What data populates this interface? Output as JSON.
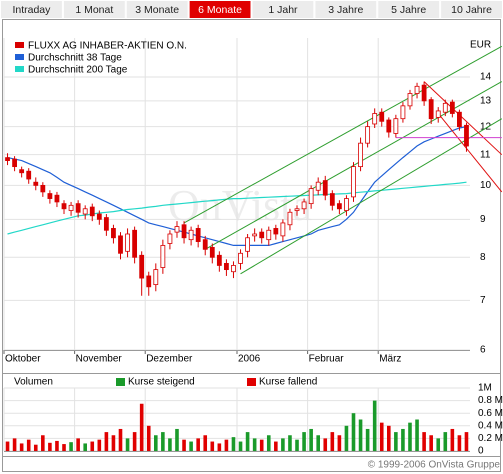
{
  "tabs": [
    "Intraday",
    "1 Monat",
    "3 Monate",
    "6 Monate",
    "1 Jahr",
    "3 Jahre",
    "5 Jahre",
    "10 Jahre"
  ],
  "active_tab": 3,
  "footer": "© 1999-2006 OnVista Gruppe",
  "chart_data": {
    "type": "candlestick",
    "unit": "EUR",
    "watermark": "OnVista",
    "log": true,
    "grid": true,
    "ohlc": {
      "name": "FLUXX AG INHABER-AKTIEN O.N.",
      "color": "#d80000",
      "open": [
        10.9,
        10.85,
        10.5,
        10.45,
        10.1,
        10.0,
        9.75,
        9.7,
        9.45,
        9.25,
        9.45,
        9.15,
        9.35,
        9.15,
        9.05,
        8.75,
        8.55,
        8.15,
        8.7,
        8.05,
        7.55,
        7.35,
        7.75,
        8.35,
        8.65,
        8.85,
        8.45,
        8.75,
        8.45,
        8.25,
        8.05,
        7.85,
        7.65,
        7.85,
        8.15,
        8.55,
        8.65,
        8.45,
        8.75,
        8.55,
        8.85,
        9.25,
        9.3,
        9.45,
        9.85,
        10.15,
        9.75,
        9.45,
        9.25,
        9.65,
        10.6,
        11.4,
        12.1,
        12.55,
        12.25,
        11.75,
        12.3,
        12.8,
        13.3,
        13.65,
        13.05,
        12.35,
        12.55,
        12.95,
        12.55,
        12.05
      ],
      "high": [
        11.05,
        10.95,
        10.6,
        10.55,
        10.25,
        10.1,
        9.85,
        9.8,
        9.55,
        9.5,
        9.55,
        9.4,
        9.45,
        9.25,
        9.15,
        8.85,
        8.65,
        8.75,
        8.8,
        8.15,
        7.65,
        7.85,
        8.45,
        8.7,
        8.95,
        8.95,
        8.8,
        8.85,
        8.55,
        8.35,
        8.15,
        7.95,
        7.9,
        8.2,
        8.6,
        8.75,
        8.75,
        8.8,
        8.85,
        9.0,
        9.3,
        9.4,
        9.6,
        10.0,
        10.25,
        10.3,
        9.85,
        9.55,
        9.7,
        10.75,
        11.6,
        12.2,
        12.7,
        12.7,
        12.35,
        12.45,
        12.95,
        13.45,
        13.75,
        13.8,
        13.15,
        12.75,
        13.05,
        13.05,
        12.65,
        12.15
      ],
      "low": [
        10.65,
        10.45,
        10.25,
        10.05,
        9.85,
        9.65,
        9.45,
        9.35,
        9.15,
        9.1,
        9.05,
        9.0,
        8.95,
        8.85,
        8.55,
        8.35,
        7.95,
        8.0,
        7.85,
        7.1,
        7.1,
        7.2,
        7.6,
        8.2,
        8.5,
        8.35,
        8.3,
        8.25,
        8.05,
        7.85,
        7.65,
        7.55,
        7.5,
        7.7,
        8.0,
        8.4,
        8.35,
        8.3,
        8.45,
        8.4,
        8.7,
        9.1,
        9.15,
        9.3,
        9.7,
        9.55,
        9.25,
        9.15,
        9.1,
        9.5,
        10.45,
        11.25,
        11.95,
        12.0,
        11.6,
        11.6,
        12.15,
        12.65,
        13.1,
        12.8,
        12.1,
        12.15,
        12.4,
        12.35,
        11.85,
        11.1
      ],
      "close": [
        10.8,
        10.6,
        10.4,
        10.2,
        10.0,
        9.8,
        9.6,
        9.5,
        9.3,
        9.4,
        9.2,
        9.3,
        9.1,
        9.0,
        8.7,
        8.5,
        8.1,
        8.6,
        8.0,
        7.5,
        7.3,
        7.7,
        8.3,
        8.6,
        8.8,
        8.5,
        8.7,
        8.4,
        8.2,
        8.0,
        7.8,
        7.7,
        7.8,
        8.1,
        8.5,
        8.6,
        8.5,
        8.7,
        8.6,
        8.9,
        9.2,
        9.3,
        9.5,
        9.9,
        10.1,
        9.7,
        9.4,
        9.3,
        9.6,
        10.6,
        11.4,
        12.0,
        12.5,
        12.2,
        11.8,
        12.3,
        12.8,
        13.3,
        13.6,
        13.0,
        12.3,
        12.6,
        12.9,
        12.5,
        12.0,
        11.3
      ]
    },
    "series": [
      {
        "name": "Durchschnitt 38 Tage",
        "color": "#1f5fd6",
        "values": [
          10.9,
          10.85,
          10.8,
          10.7,
          10.6,
          10.5,
          10.4,
          10.25,
          10.1,
          10.0,
          9.9,
          9.8,
          9.7,
          9.6,
          9.5,
          9.4,
          9.3,
          9.2,
          9.1,
          9.0,
          8.9,
          8.85,
          8.8,
          8.75,
          8.7,
          8.65,
          8.6,
          8.55,
          8.5,
          8.45,
          8.4,
          8.35,
          8.3,
          8.3,
          8.3,
          8.3,
          8.3,
          8.3,
          8.35,
          8.4,
          8.45,
          8.5,
          8.55,
          8.6,
          8.7,
          8.75,
          8.8,
          8.85,
          9.0,
          9.2,
          9.5,
          9.8,
          10.1,
          10.3,
          10.5,
          10.7,
          10.9,
          11.1,
          11.3,
          11.45,
          11.55,
          11.65,
          11.75,
          11.85,
          11.95,
          12.0
        ]
      },
      {
        "name": "Durchschnitt 200 Tage",
        "color": "#22d8c8",
        "values": [
          8.6,
          8.65,
          8.7,
          8.75,
          8.8,
          8.85,
          8.9,
          8.95,
          9.0,
          9.05,
          9.1,
          9.12,
          9.15,
          9.18,
          9.2,
          9.22,
          9.25,
          9.28,
          9.3,
          9.32,
          9.35,
          9.37,
          9.4,
          9.42,
          9.44,
          9.46,
          9.48,
          9.5,
          9.52,
          9.54,
          9.56,
          9.58,
          9.6,
          9.6,
          9.61,
          9.62,
          9.63,
          9.64,
          9.65,
          9.66,
          9.67,
          9.68,
          9.69,
          9.7,
          9.71,
          9.72,
          9.73,
          9.74,
          9.75,
          9.77,
          9.79,
          9.81,
          9.83,
          9.85,
          9.87,
          9.89,
          9.91,
          9.93,
          9.95,
          9.97,
          9.99,
          10.01,
          10.03,
          10.05,
          10.07,
          10.1
        ]
      }
    ],
    "categories": [
      null,
      null,
      null,
      null,
      null,
      null,
      null,
      null,
      null,
      null,
      null,
      null,
      null,
      null,
      null,
      null,
      null,
      null,
      null,
      null,
      null,
      null,
      null,
      null,
      null,
      null,
      null,
      null,
      null,
      null,
      null,
      null,
      null,
      null,
      null,
      null,
      null,
      null,
      null,
      null,
      null,
      null,
      null,
      null,
      null,
      null,
      null,
      null,
      null,
      null,
      null,
      null,
      null,
      null,
      null,
      null,
      null,
      null,
      null,
      null,
      null,
      null,
      null,
      null,
      null,
      null
    ],
    "xticks": [
      {
        "value": 0,
        "label": "Oktober"
      },
      {
        "value": 10,
        "label": "November"
      },
      {
        "value": 20,
        "label": "Dezember"
      },
      {
        "value": 33,
        "label": "2006"
      },
      {
        "value": 43,
        "label": "Februar"
      },
      {
        "value": 53,
        "label": "März"
      }
    ],
    "ylim": [
      6,
      15.8
    ],
    "yticks": [
      6,
      7,
      8,
      9,
      10,
      11,
      12,
      13,
      14
    ],
    "trend_lines": [
      {
        "color": "#2e9e2e",
        "points": [
          [
            25,
            8.9
          ],
          [
            70,
            15.4
          ]
        ]
      },
      {
        "color": "#2e9e2e",
        "points": [
          [
            28,
            8.2
          ],
          [
            70,
            13.8
          ]
        ]
      },
      {
        "color": "#2e9e2e",
        "points": [
          [
            33,
            7.6
          ],
          [
            70,
            12.3
          ]
        ]
      },
      {
        "color": "#e01010",
        "points": [
          [
            59,
            13.8
          ],
          [
            70,
            11.0
          ]
        ]
      },
      {
        "color": "#e01010",
        "points": [
          [
            61,
            12.5
          ],
          [
            70,
            9.8
          ]
        ]
      },
      {
        "color": "#d040d0",
        "points": [
          [
            55,
            11.6
          ],
          [
            70,
            11.6
          ]
        ]
      }
    ],
    "volume": {
      "label": "Volumen",
      "up_label": "Kurse steigend",
      "down_label": "Kurse fallend",
      "up_color": "#1a9a2a",
      "down_color": "#e00000",
      "values": [
        150000,
        200000,
        120000,
        180000,
        100000,
        250000,
        130000,
        160000,
        110000,
        140000,
        200000,
        120000,
        150000,
        180000,
        300000,
        250000,
        350000,
        200000,
        300000,
        750000,
        400000,
        250000,
        300000,
        200000,
        350000,
        180000,
        150000,
        200000,
        250000,
        150000,
        120000,
        180000,
        220000,
        150000,
        300000,
        200000,
        180000,
        250000,
        150000,
        200000,
        250000,
        180000,
        300000,
        350000,
        250000,
        200000,
        300000,
        250000,
        400000,
        600000,
        500000,
        350000,
        800000,
        450000,
        400000,
        300000,
        350000,
        450000,
        500000,
        300000,
        250000,
        200000,
        300000,
        350000,
        250000,
        300000
      ],
      "ylim": [
        0,
        1000000
      ],
      "yticks": [
        {
          "value": 1000000,
          "label": "1M"
        },
        {
          "value": 800000,
          "label": "0.8 M"
        },
        {
          "value": 600000,
          "label": "0.6 M"
        },
        {
          "value": 400000,
          "label": "0.4 M"
        },
        {
          "value": 200000,
          "label": "0.2 M"
        },
        0
      ]
    }
  }
}
